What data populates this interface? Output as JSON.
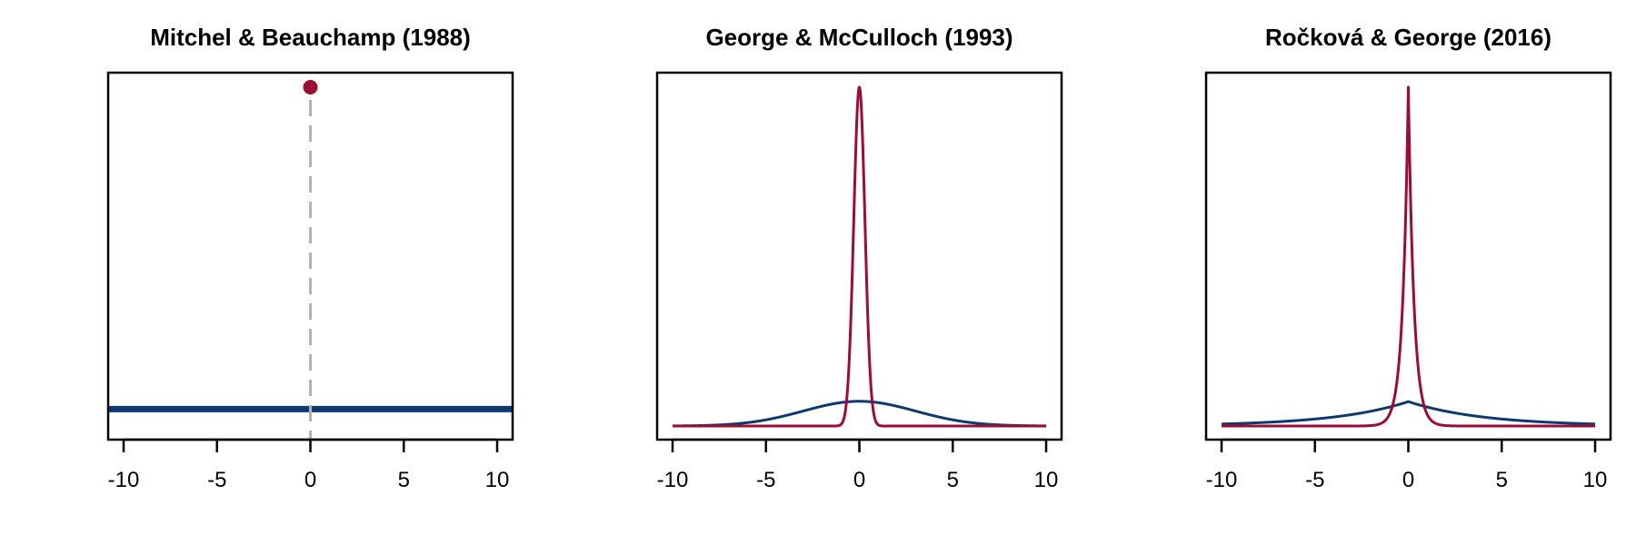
{
  "colors": {
    "spike": "#9B0D35",
    "slab": "#0D3A6E",
    "dashed": "#B3B3B3",
    "axis": "#000000"
  },
  "chart_data": [
    {
      "type": "line",
      "title": "Mitchel & Beauchamp (1988)",
      "xlim": [
        -10,
        10
      ],
      "xticks": [
        -10,
        -5,
        0,
        5,
        10
      ],
      "tick_labels": [
        "-10",
        "-5",
        "0",
        "5",
        "10"
      ],
      "yaxis_visible": false,
      "series": [
        {
          "kind": "slab",
          "shape": "uniform",
          "x": [
            -10.8,
            10.8
          ],
          "y": [
            0.05,
            0.05
          ]
        },
        {
          "kind": "spike",
          "shape": "point-mass",
          "x": [
            0
          ],
          "y": [
            1.0
          ]
        }
      ],
      "annotations": [
        {
          "type": "dashed-vertical-line",
          "x": 0
        }
      ]
    },
    {
      "type": "line",
      "title": "George & McCulloch (1993)",
      "xlim": [
        -10,
        10
      ],
      "xticks": [
        -10,
        -5,
        0,
        5,
        10
      ],
      "tick_labels": [
        "-10",
        "-5",
        "0",
        "5",
        "10"
      ],
      "yaxis_visible": false,
      "series": [
        {
          "kind": "slab",
          "shape": "normal",
          "center": 0,
          "scale": 3.0,
          "peak": 0.073
        },
        {
          "kind": "spike",
          "shape": "normal",
          "center": 0,
          "scale": 0.3,
          "peak": 1.0
        }
      ]
    },
    {
      "type": "line",
      "title": "Ročková & George (2016)",
      "xlim": [
        -10,
        10
      ],
      "xticks": [
        -10,
        -5,
        0,
        5,
        10
      ],
      "tick_labels": [
        "-10",
        "-5",
        "0",
        "5",
        "10"
      ],
      "yaxis_visible": false,
      "series": [
        {
          "kind": "slab",
          "shape": "laplace",
          "center": 0,
          "scale": 4.0,
          "peak": 0.072
        },
        {
          "kind": "spike",
          "shape": "laplace",
          "center": 0,
          "scale": 0.3,
          "peak": 1.0
        }
      ]
    }
  ]
}
